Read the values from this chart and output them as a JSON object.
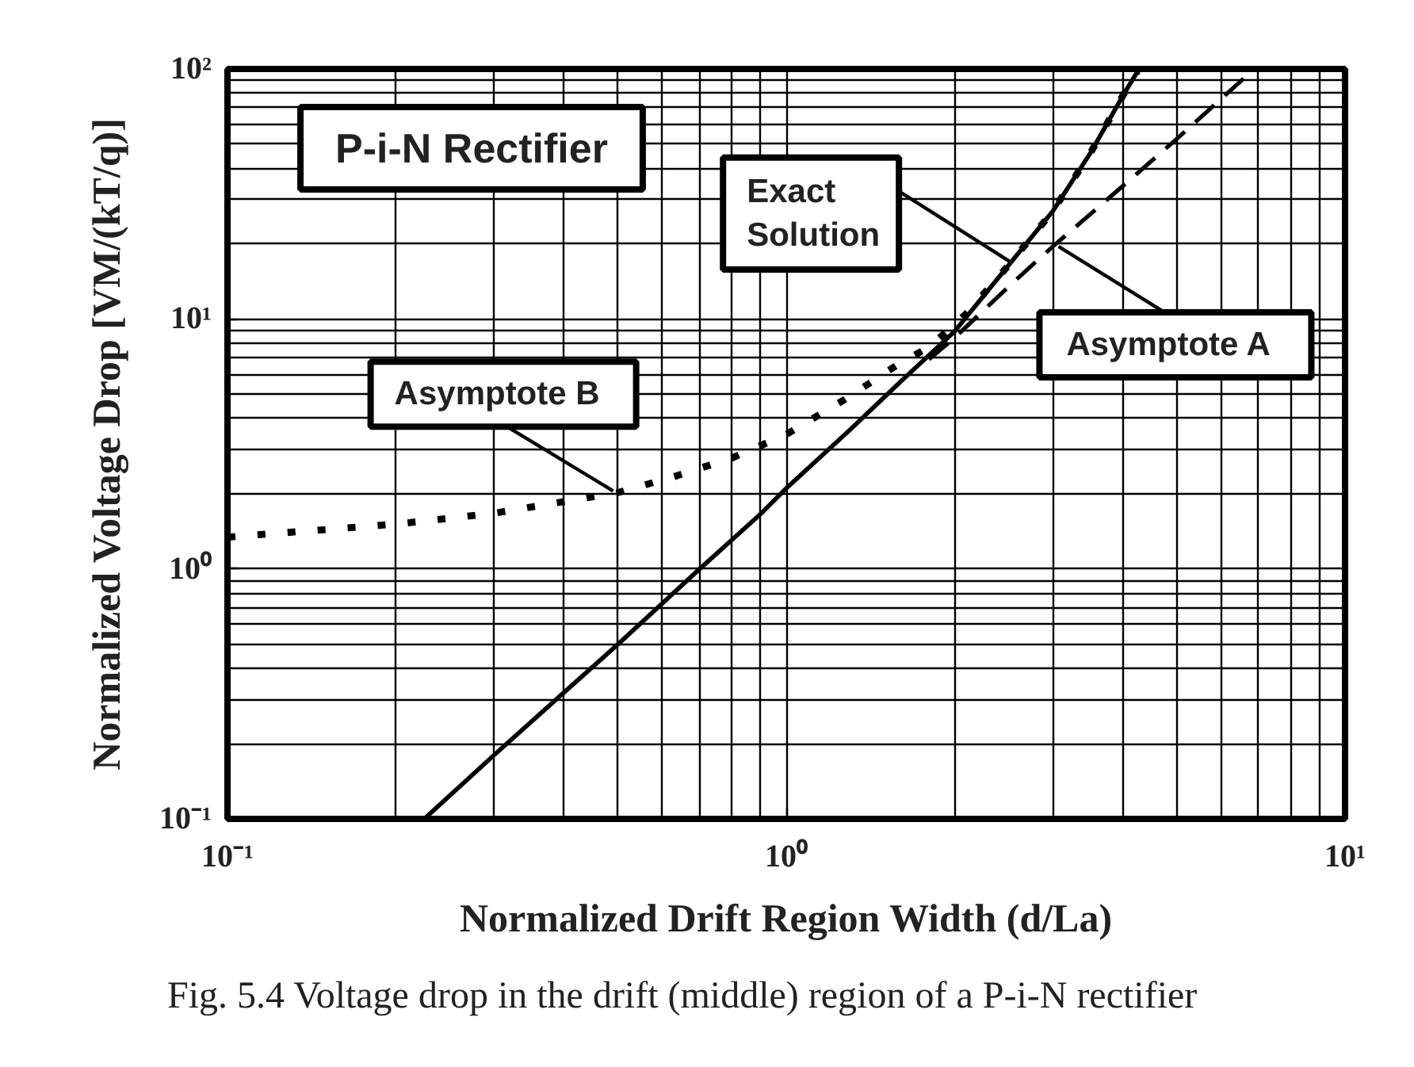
{
  "chart_data": {
    "type": "line",
    "title": "P-i-N Rectifier",
    "xlabel": "Normalized Drift Region Width (d/La)",
    "ylabel": "Normalized Voltage Drop [VM/(kT/q)]",
    "log": "xy",
    "grid": true,
    "xlim": [
      0.1,
      10
    ],
    "ylim": [
      0.1,
      100
    ],
    "xticks": [
      {
        "value": 0.1,
        "label": "10⁻¹"
      },
      {
        "value": 1,
        "label": "10⁰"
      },
      {
        "value": 10,
        "label": "10¹"
      }
    ],
    "yticks": [
      {
        "value": 0.1,
        "label": "10⁻¹"
      },
      {
        "value": 1,
        "label": "10⁰"
      },
      {
        "value": 10,
        "label": "10¹"
      },
      {
        "value": 100,
        "label": "10²"
      }
    ],
    "series": [
      {
        "color": "#000000",
        "line_style": "dotted",
        "x": [
          0.1,
          0.2,
          0.3,
          0.5,
          0.63,
          0.8,
          1.0,
          1.27,
          1.6,
          1.8,
          2.1,
          2.5,
          3.0,
          3.5,
          4.0,
          4.25
        ],
        "values": [
          1.34,
          1.51,
          1.67,
          2.02,
          2.34,
          2.78,
          3.45,
          4.75,
          6.67,
          7.7,
          10.5,
          16.4,
          27,
          46,
          78,
          98
        ]
      },
      {
        "color": "#000000",
        "line_style": "solid",
        "x": [
          0.225,
          0.3,
          0.4,
          0.5,
          0.7,
          0.9,
          1.0,
          1.3,
          1.6,
          2.0,
          2.5,
          3.0,
          3.5,
          4.0,
          4.28
        ],
        "values": [
          0.1,
          0.18,
          0.32,
          0.5,
          1.0,
          1.66,
          2.1,
          3.6,
          5.6,
          8.9,
          16.4,
          27,
          46,
          78,
          100
        ]
      },
      {
        "color": "#000000",
        "line_style": "dashed",
        "x": [
          1.8,
          2.0,
          2.53,
          3.0,
          3.58,
          4.0,
          5.07,
          6.6
        ],
        "values": [
          6.9,
          8.4,
          13.8,
          19.5,
          27.4,
          34,
          54,
          92
        ]
      }
    ],
    "annotations": [
      {
        "text": "Exact Solution",
        "x": 2.53,
        "y": 16.8
      },
      {
        "text": "Asymptote A",
        "x": 3.07,
        "y": 19.5
      },
      {
        "text": "Asymptote B",
        "x": 0.49,
        "y": 2.05
      },
      "Fig. 5.4 Voltage drop in the drift (middle) region of a P-i-N rectifier"
    ]
  }
}
